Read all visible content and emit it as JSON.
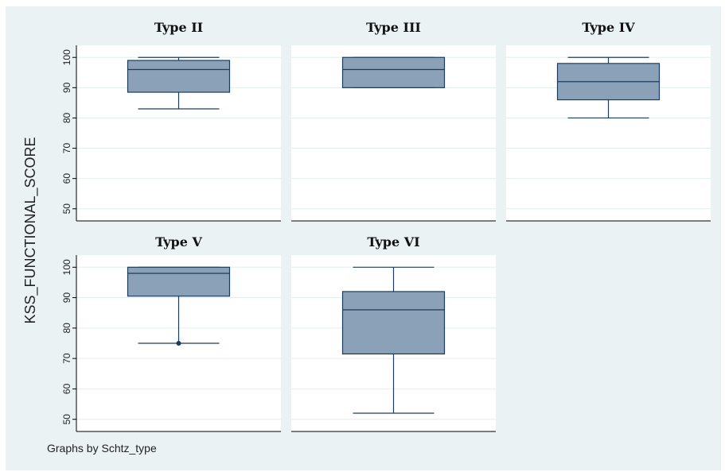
{
  "chart_data": {
    "type": "box",
    "ylabel": "KSS_FUNCTIONAL_SCORE",
    "ylim": [
      46,
      104
    ],
    "yticks": [
      50,
      60,
      70,
      80,
      90,
      100
    ],
    "grid": true,
    "note": "Graphs by Schtz_type",
    "colors": {
      "outer_background": "#eaf2f3",
      "plot_background": "#ffffff",
      "gridline": "#e3eded",
      "box_fill": "#8aa1b8",
      "box_stroke": "#1d3c5c",
      "axis": "#000000"
    },
    "panels": [
      {
        "title": "Type II",
        "min": 83,
        "q1": 88.5,
        "median": 96,
        "q3": 99,
        "max": 100,
        "outliers": []
      },
      {
        "title": "Type III",
        "min": 90,
        "q1": 90,
        "median": 96,
        "q3": 100,
        "max": 100,
        "outliers": []
      },
      {
        "title": "Type IV",
        "min": 80,
        "q1": 86,
        "median": 92,
        "q3": 98,
        "max": 100,
        "outliers": []
      },
      {
        "title": "Type V",
        "min": 75,
        "q1": 90.5,
        "median": 98,
        "q3": 100,
        "max": 100,
        "outliers": [
          75
        ]
      },
      {
        "title": "Type VI",
        "min": 52,
        "q1": 71.5,
        "median": 86,
        "q3": 92,
        "max": 100,
        "outliers": []
      }
    ]
  }
}
